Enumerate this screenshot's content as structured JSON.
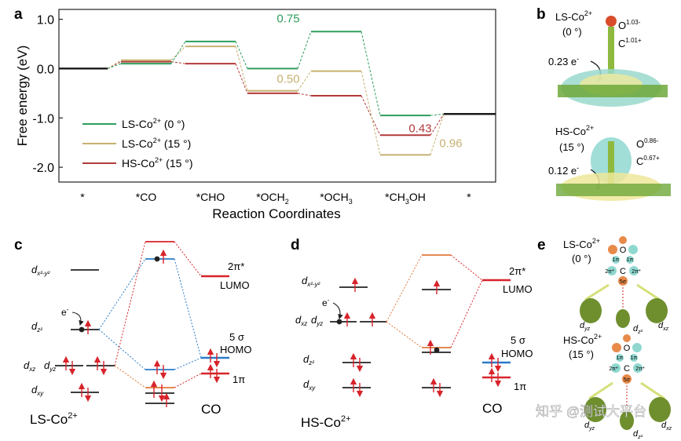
{
  "panels": {
    "a": "a",
    "b": "b",
    "c": "c",
    "d": "d",
    "e": "e"
  },
  "colors": {
    "ls0": "#2e9e5e",
    "ls15": "#c7b071",
    "hs15": "#b23a3a",
    "dashed_ls0": "#2e9e5e",
    "dashed_ls15": "#c7b071",
    "dashed_hs15": "#b23a3a",
    "blue_dot": "#2f6eb8",
    "red_dot": "#d94c2b",
    "orbital_red": "#d8232a",
    "orbital_blue": "#2a7ac8",
    "arrow_red": "#d8232a",
    "lobe_green": "#6f8f2e",
    "iso_yellow": "#efe89a",
    "iso_cyan": "#8fd8d0"
  },
  "chart_data": {
    "type": "line",
    "title": "",
    "xlabel": "Reaction Coordinates",
    "ylabel": "Free energy (eV)",
    "ylim": [
      -2.3,
      1.2
    ],
    "yticks": [
      "1.0",
      "0.0",
      "-1.0",
      "-2.0"
    ],
    "yticks_values": [
      1.0,
      0.0,
      -1.0,
      -2.0
    ],
    "categories": [
      "*",
      "*CO",
      "*CHO",
      "*OCH2",
      "*OCH3",
      "*CH3OH",
      "*"
    ],
    "category_labels": [
      {
        "main": "*",
        "sub": ""
      },
      {
        "main": "*CO",
        "sub": ""
      },
      {
        "main": "*CHO",
        "sub": ""
      },
      {
        "main": "*OCH",
        "sub": "2"
      },
      {
        "main": "*OCH",
        "sub": "3"
      },
      {
        "main": "*CH",
        "sub": "3",
        "tail": "OH"
      },
      {
        "main": "*",
        "sub": ""
      }
    ],
    "series": [
      {
        "name": "LS-Co²⁺ (0 °)",
        "legend_main": "LS-Co",
        "legend_sup": "2+",
        "legend_tail": " (0 °)",
        "values": [
          0.0,
          0.1,
          0.55,
          0.0,
          0.75,
          -0.95,
          -0.92
        ]
      },
      {
        "name": "LS-Co²⁺ (15 °)",
        "legend_main": "LS-Co",
        "legend_sup": "2+",
        "legend_tail": " (15 °)",
        "values": [
          0.0,
          0.17,
          0.45,
          -0.45,
          -0.05,
          -1.75,
          -0.92
        ]
      },
      {
        "name": "HS-Co²⁺ (15 °)",
        "legend_main": "HS-Co",
        "legend_sup": "2+",
        "legend_tail": " (15 °)",
        "values": [
          0.0,
          0.14,
          0.1,
          -0.5,
          -0.55,
          -1.35,
          -0.92
        ]
      }
    ],
    "annotations": [
      {
        "text": "0.75",
        "series": 0
      },
      {
        "text": "0.50",
        "series": 1
      },
      {
        "text": "0.43",
        "series": 2
      },
      {
        "text": "0.96",
        "series": 1
      }
    ],
    "legend_position": "bottom-left",
    "grid": false
  },
  "panel_b": {
    "ls_label_main": "LS-Co",
    "ls_label_sup": "2+",
    "ls_angle": "(0 °)",
    "ls_o": "O",
    "ls_o_charge": "1.03-",
    "ls_c": "C",
    "ls_c_charge": "1.01+",
    "ls_transfer": "0.23 e",
    "ls_transfer_sup": "-",
    "hs_label_main": "HS-Co",
    "hs_label_sup": "2+",
    "hs_angle": "(15 °)",
    "hs_o": "O",
    "hs_o_charge": "0.86-",
    "hs_c": "C",
    "hs_c_charge": "0.67+",
    "hs_transfer": "0.12 e",
    "hs_transfer_sup": "-"
  },
  "panel_c": {
    "title_main": "LS-Co",
    "title_sup": "2+",
    "co_label": "CO",
    "lumo_sym": "2π*",
    "lumo_label": "LUMO",
    "homo_sym": "5 σ",
    "homo_label": "HOMO",
    "pi_label": "1π",
    "electron": "e",
    "electron_sup": "-",
    "d_x2y2": {
      "d": "d",
      "sub": "x²-y²"
    },
    "d_z2": {
      "d": "d",
      "sub": "z²"
    },
    "d_xz": {
      "d": "d",
      "sub": "xz"
    },
    "d_yz": {
      "d": "d",
      "sub": "yz"
    },
    "d_xy": {
      "d": "d",
      "sub": "xy"
    }
  },
  "panel_d": {
    "title_main": "HS-Co",
    "title_sup": "2+",
    "co_label": "CO",
    "lumo_sym": "2π*",
    "lumo_label": "LUMO",
    "homo_sym": "5 σ",
    "homo_label": "HOMO",
    "pi_label": "1π",
    "electron": "e",
    "electron_sup": "-",
    "d_x2y2": {
      "d": "d",
      "sub": "x²-y²"
    },
    "d_xz": {
      "d": "d",
      "sub": "xz"
    },
    "d_yz": {
      "d": "d",
      "sub": "yz"
    },
    "d_z2": {
      "d": "d",
      "sub": "z²"
    },
    "d_xy": {
      "d": "d",
      "sub": "xy"
    }
  },
  "panel_e": {
    "ls_label_main": "LS-Co",
    "ls_label_sup": "2+",
    "ls_angle": "(0 °)",
    "hs_label_main": "HS-Co",
    "hs_label_sup": "2+",
    "hs_angle": "(15 °)",
    "o": "O",
    "c": "C",
    "sigma": "5σ",
    "pi_star": "2π*",
    "pi": "1π",
    "d_yz": {
      "d": "d",
      "sub": "yz"
    },
    "d_xz": {
      "d": "d",
      "sub": "xz"
    },
    "d_z2": {
      "d": "d",
      "sub": "z²"
    }
  },
  "watermark": "知乎 @测试大平台"
}
